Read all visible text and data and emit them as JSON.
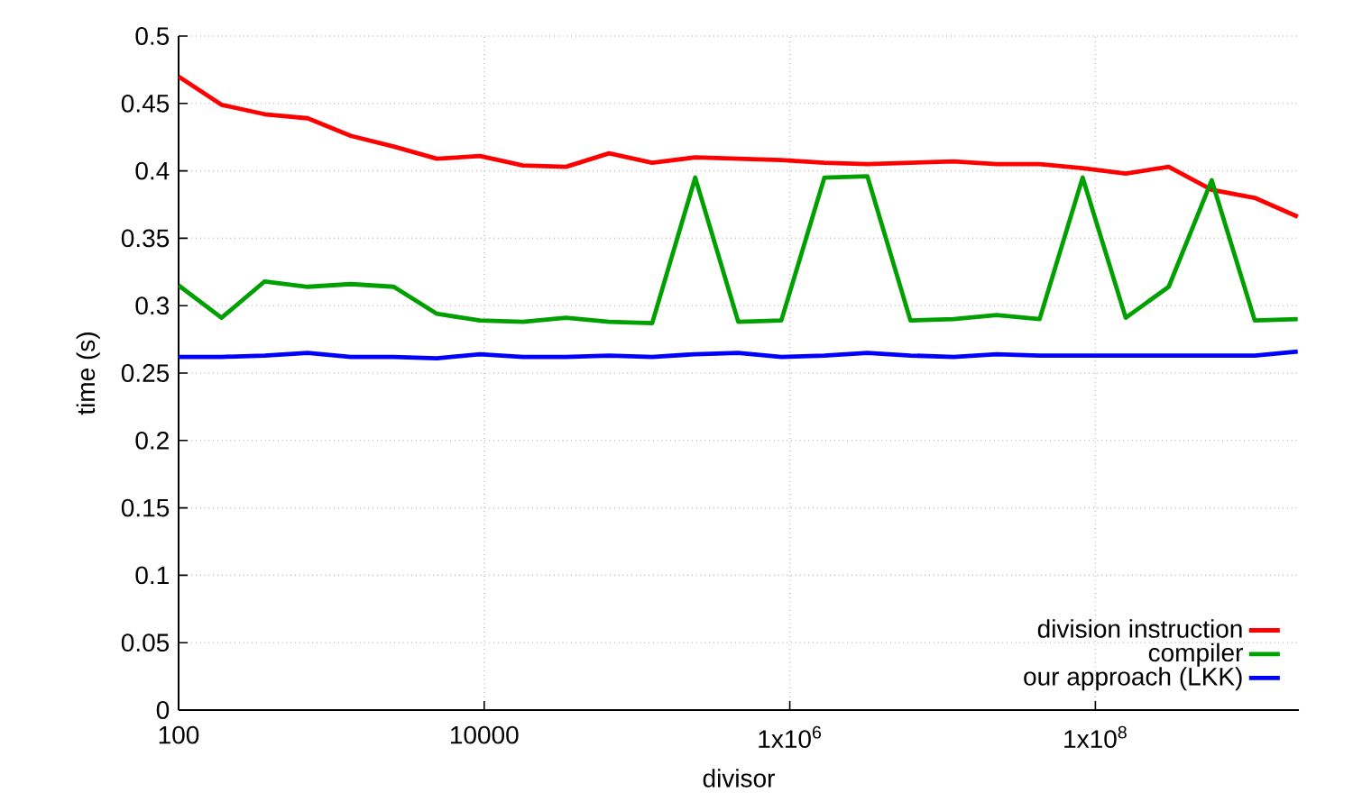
{
  "chart_data": {
    "type": "line",
    "xlabel": "divisor",
    "ylabel": "time (s)",
    "log": "x",
    "grid": true,
    "legend": "bottom right",
    "marker": "none",
    "line_style": "solid",
    "x": [
      100,
      191,
      366,
      700,
      1339,
      2560,
      4900,
      9380,
      17940,
      34300,
      65700,
      125700,
      240400,
      460000,
      880000,
      1684000,
      3220000,
      6160000,
      11790000,
      22550000,
      43140000,
      82500000,
      158000000,
      302000000,
      577000000,
      1104000000,
      2110000000
    ],
    "xlim": [
      100,
      2147483648
    ],
    "xticks": [
      100,
      10000,
      {
        "value": 1000000,
        "label": "1x10$^{6}$"
      },
      {
        "value": 100000000,
        "label": "1x10$^{8}$"
      }
    ],
    "ylim": [
      0,
      0.5
    ],
    "yticks": [
      0,
      0.05,
      0.1,
      0.15,
      0.2,
      0.25,
      0.3,
      0.35,
      0.4,
      0.45,
      0.5
    ],
    "series": [
      {
        "name": "division instruction",
        "color": "#ff0000",
        "values": [
          0.47,
          0.449,
          0.442,
          0.439,
          0.426,
          0.418,
          0.409,
          0.411,
          0.404,
          0.403,
          0.413,
          0.406,
          0.41,
          0.409,
          0.408,
          0.406,
          0.405,
          0.406,
          0.407,
          0.405,
          0.405,
          0.402,
          0.398,
          0.403,
          0.386,
          0.38,
          0.366
        ]
      },
      {
        "name": "compiler",
        "color": "#00a000",
        "values": [
          0.315,
          0.291,
          0.318,
          0.314,
          0.316,
          0.314,
          0.294,
          0.289,
          0.288,
          0.291,
          0.288,
          0.287,
          0.395,
          0.288,
          0.289,
          0.395,
          0.396,
          0.289,
          0.29,
          0.293,
          0.29,
          0.395,
          0.291,
          0.314,
          0.393,
          0.289,
          0.29
        ]
      },
      {
        "name": "our approach (LKK)",
        "color": "#0000ff",
        "values": [
          0.262,
          0.262,
          0.263,
          0.265,
          0.262,
          0.262,
          0.261,
          0.264,
          0.262,
          0.262,
          0.263,
          0.262,
          0.264,
          0.265,
          0.262,
          0.263,
          0.265,
          0.263,
          0.262,
          0.264,
          0.263,
          0.263,
          0.263,
          0.263,
          0.263,
          0.263,
          0.266
        ]
      }
    ]
  }
}
